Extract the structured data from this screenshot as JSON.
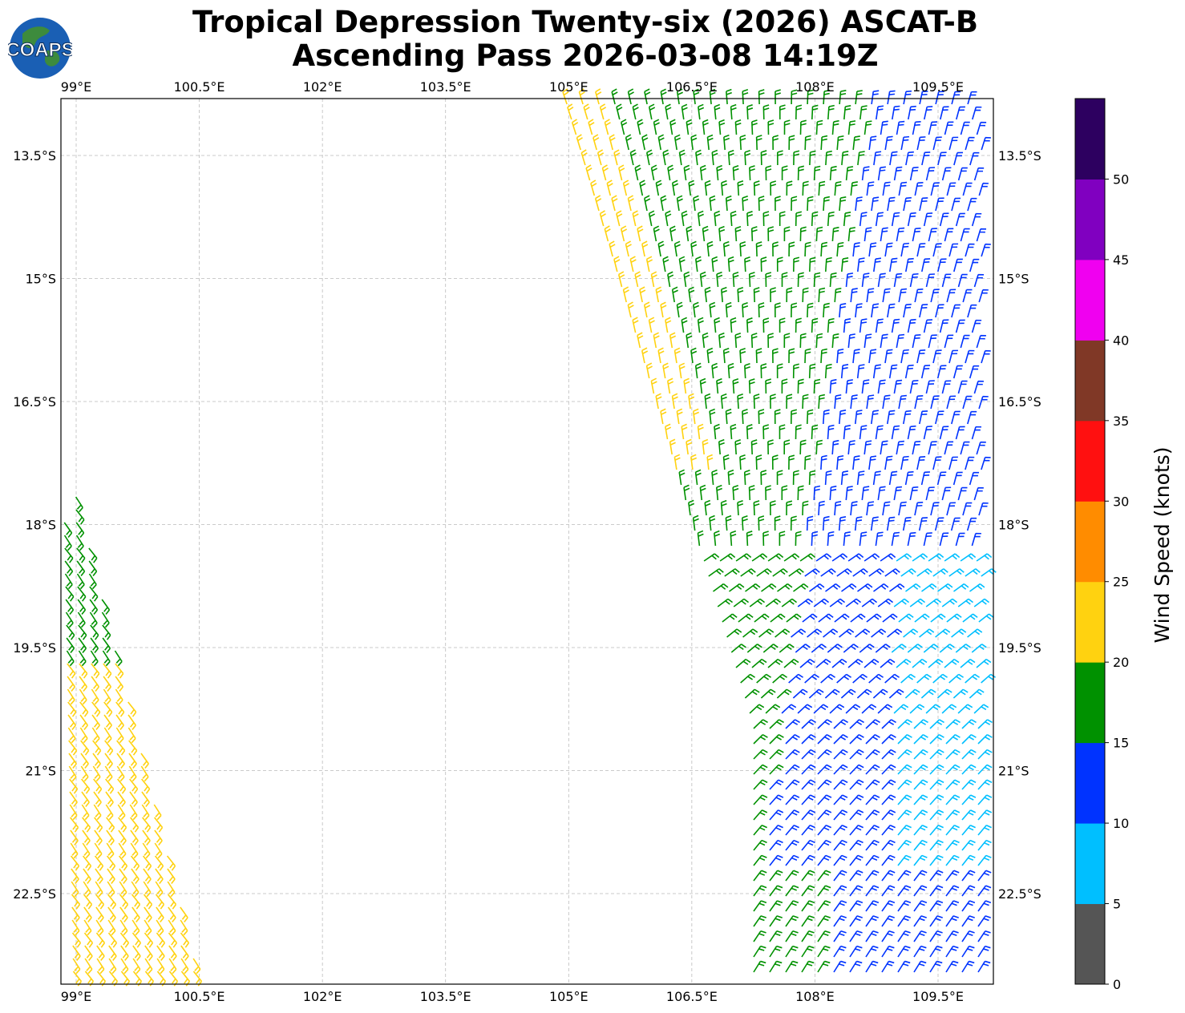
{
  "title_line1": "Tropical Depression Twenty-six (2026) ASCAT-B",
  "title_line2": "Ascending Pass 2026-03-08 14:19Z",
  "logo_text": "COAPS",
  "lon_ticks": [
    "99°E",
    "100.5°E",
    "102°E",
    "103.5°E",
    "105°E",
    "106.5°E",
    "108°E",
    "109.5°E"
  ],
  "lat_ticks": [
    "13.5°S",
    "15°S",
    "16.5°S",
    "18°S",
    "19.5°S",
    "21°S",
    "22.5°S"
  ],
  "colorbar": {
    "label": "Wind Speed (knots)",
    "ticks": [
      "0",
      "5",
      "10",
      "15",
      "20",
      "25",
      "30",
      "35",
      "40",
      "45",
      "50"
    ],
    "colors": [
      "#555555",
      "#00bfff",
      "#0033ff",
      "#009100",
      "#ffd210",
      "#ff8c00",
      "#ff1010",
      "#803826",
      "#f000f0",
      "#8000c0",
      "#2d0060"
    ]
  },
  "map_extent": {
    "lon_min": 98.8,
    "lon_max": 110.2,
    "lat_min": -23.6,
    "lat_max": -12.8
  }
}
